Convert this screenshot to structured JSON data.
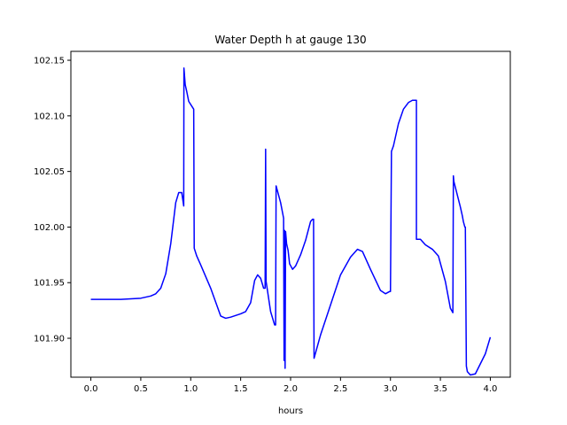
{
  "chart_data": {
    "type": "line",
    "title": "Water Depth h at gauge 130",
    "xlabel": "hours",
    "ylabel": "",
    "xlim": [
      -0.2,
      4.2
    ],
    "ylim": [
      101.865,
      102.158
    ],
    "xticks": [
      0.0,
      0.5,
      1.0,
      1.5,
      2.0,
      2.5,
      3.0,
      3.5,
      4.0
    ],
    "xtick_labels": [
      "0.0",
      "0.5",
      "1.0",
      "1.5",
      "2.0",
      "2.5",
      "3.0",
      "3.5",
      "4.0"
    ],
    "yticks": [
      101.9,
      101.95,
      102.0,
      102.05,
      102.1,
      102.15
    ],
    "ytick_labels": [
      "101.90",
      "101.95",
      "102.00",
      "102.05",
      "102.10",
      "102.15"
    ],
    "grid": false,
    "legend": "none",
    "series": [
      {
        "color": "#0000ff",
        "x": [
          0.0,
          0.1,
          0.2,
          0.3,
          0.4,
          0.5,
          0.55,
          0.6,
          0.65,
          0.7,
          0.75,
          0.8,
          0.85,
          0.88,
          0.91,
          0.93,
          0.932,
          0.945,
          0.96,
          0.98,
          1.03,
          1.035,
          1.06,
          1.1,
          1.2,
          1.3,
          1.35,
          1.4,
          1.5,
          1.55,
          1.6,
          1.64,
          1.67,
          1.7,
          1.73,
          1.745,
          1.75,
          1.755,
          1.8,
          1.84,
          1.85,
          1.855,
          1.9,
          1.93,
          1.935,
          1.94,
          1.945,
          1.95,
          1.96,
          1.975,
          1.99,
          2.02,
          2.05,
          2.1,
          2.15,
          2.2,
          2.22,
          2.23,
          2.235,
          2.3,
          2.4,
          2.5,
          2.6,
          2.67,
          2.72,
          2.8,
          2.9,
          2.95,
          2.99,
          3.0,
          3.01,
          3.03,
          3.08,
          3.13,
          3.18,
          3.22,
          3.25,
          3.26,
          3.26,
          3.3,
          3.35,
          3.42,
          3.48,
          3.55,
          3.6,
          3.625,
          3.63,
          3.635,
          3.7,
          3.72,
          3.73,
          3.745,
          3.75,
          3.76,
          3.77,
          3.8,
          3.85,
          3.95,
          4.0
        ],
        "y": [
          101.935,
          101.935,
          101.935,
          101.935,
          101.9355,
          101.936,
          101.937,
          101.938,
          101.94,
          101.945,
          101.958,
          101.985,
          102.022,
          102.031,
          102.031,
          102.019,
          102.143,
          102.128,
          102.122,
          102.113,
          102.106,
          101.981,
          101.974,
          101.966,
          101.945,
          101.92,
          101.918,
          101.919,
          101.922,
          101.924,
          101.932,
          101.952,
          101.957,
          101.954,
          101.945,
          101.945,
          102.07,
          101.951,
          101.924,
          101.912,
          101.912,
          102.037,
          102.022,
          102.008,
          101.88,
          101.997,
          101.873,
          101.996,
          101.985,
          101.979,
          101.967,
          101.962,
          101.965,
          101.975,
          101.988,
          102.005,
          102.007,
          102.007,
          101.882,
          101.903,
          101.93,
          101.957,
          101.973,
          101.98,
          101.978,
          101.962,
          101.943,
          101.94,
          101.942,
          101.942,
          102.068,
          102.073,
          102.093,
          102.106,
          102.112,
          102.114,
          102.114,
          102.114,
          101.989,
          101.989,
          101.984,
          101.98,
          101.974,
          101.951,
          101.927,
          101.923,
          102.046,
          102.041,
          102.018,
          102.01,
          102.005,
          102.0,
          102.0,
          101.875,
          101.87,
          101.867,
          101.868,
          101.886,
          101.901
        ]
      }
    ]
  }
}
